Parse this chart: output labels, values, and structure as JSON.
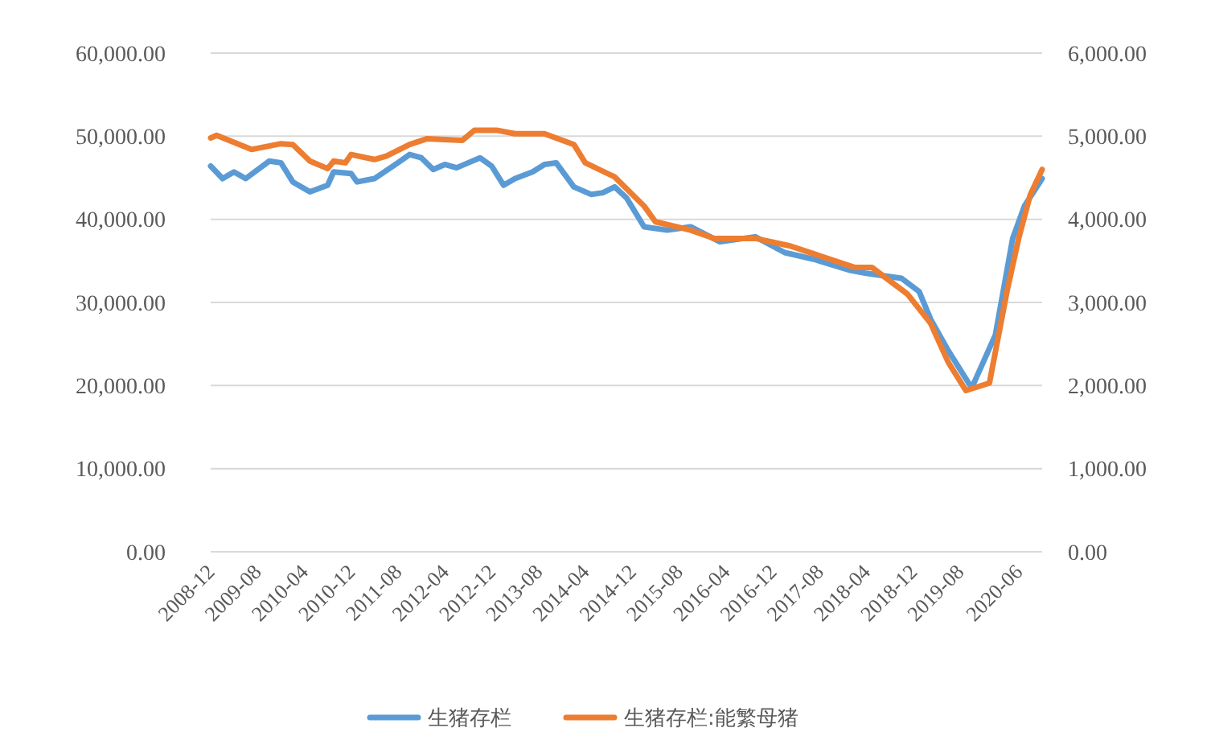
{
  "chart_data": {
    "type": "line",
    "legend": "bottom",
    "grid": "y",
    "marker": "none",
    "line_style": "solid",
    "xlim": [
      "2008-12",
      "2020-10"
    ],
    "xticks": [
      "2008-12",
      "2009-08",
      "2010-04",
      "2010-12",
      "2011-08",
      "2012-04",
      "2012-12",
      "2013-08",
      "2014-04",
      "2014-12",
      "2015-08",
      "2016-04",
      "2016-12",
      "2017-08",
      "2018-04",
      "2018-12",
      "2019-08",
      "2020-06"
    ],
    "ylim": [
      0,
      60000
    ],
    "yticks": [
      {
        "value": 0,
        "label": "0.00"
      },
      {
        "value": 10000,
        "label": "10,000.00"
      },
      {
        "value": 20000,
        "label": "20,000.00"
      },
      {
        "value": 30000,
        "label": "30,000.00"
      },
      {
        "value": 40000,
        "label": "40,000.00"
      },
      {
        "value": 50000,
        "label": "50,000.00"
      },
      {
        "value": 60000,
        "label": "60,000.00"
      }
    ],
    "y2lim": [
      0,
      6000
    ],
    "y2ticks": [
      {
        "value": 0,
        "label": "0.00"
      },
      {
        "value": 1000,
        "label": "1,000.00"
      },
      {
        "value": 2000,
        "label": "2,000.00"
      },
      {
        "value": 3000,
        "label": "3,000.00"
      },
      {
        "value": 4000,
        "label": "4,000.00"
      },
      {
        "value": 5000,
        "label": "5,000.00"
      },
      {
        "value": 6000,
        "label": "6,000.00"
      }
    ],
    "series": [
      {
        "name": "生猪存栏",
        "color": "#5b9bd5",
        "x": [
          "2008-12",
          "2009-02",
          "2009-04",
          "2009-06",
          "2009-10",
          "2009-12",
          "2010-02",
          "2010-05",
          "2010-08",
          "2010-09",
          "2010-12",
          "2011-01",
          "2011-04",
          "2011-08",
          "2011-10",
          "2011-12",
          "2012-02",
          "2012-04",
          "2012-06",
          "2012-08",
          "2012-10",
          "2012-12",
          "2013-02",
          "2013-04",
          "2013-07",
          "2013-09",
          "2013-11",
          "2014-02",
          "2014-05",
          "2014-07",
          "2014-09",
          "2014-11",
          "2015-02",
          "2015-06",
          "2015-10",
          "2016-03",
          "2016-09",
          "2017-02",
          "2017-07",
          "2018-01",
          "2018-04",
          "2018-10",
          "2019-01",
          "2019-03",
          "2019-06",
          "2019-10",
          "2020-02",
          "2020-05",
          "2020-07",
          "2020-10"
        ],
        "values": [
          46400,
          44900,
          45700,
          44900,
          47000,
          46800,
          44500,
          43300,
          44100,
          45700,
          45500,
          44500,
          44900,
          46800,
          47800,
          47400,
          46000,
          46600,
          46200,
          46800,
          47400,
          46400,
          44100,
          44900,
          45700,
          46600,
          46800,
          43900,
          43000,
          43200,
          43900,
          42600,
          39100,
          38700,
          39100,
          37300,
          37900,
          36000,
          35200,
          33900,
          33500,
          32900,
          31300,
          28000,
          24200,
          19700,
          26100,
          37700,
          41600,
          44900
        ]
      },
      {
        "name": "生猪存栏:能繁母猪",
        "color": "#ed7d31",
        "axis": "y2",
        "x": [
          "2008-12",
          "2009-01",
          "2009-07",
          "2009-12",
          "2010-02",
          "2010-05",
          "2010-08",
          "2010-09",
          "2010-11",
          "2010-12",
          "2011-04",
          "2011-06",
          "2011-10",
          "2012-01",
          "2012-07",
          "2012-09",
          "2013-01",
          "2013-04",
          "2013-09",
          "2014-02",
          "2014-04",
          "2014-09",
          "2015-02",
          "2015-04",
          "2015-10",
          "2016-02",
          "2016-09",
          "2017-03",
          "2018-02",
          "2018-05",
          "2018-11",
          "2019-03",
          "2019-06",
          "2019-09",
          "2020-01",
          "2020-04",
          "2020-06",
          "2020-08",
          "2020-10"
        ],
        "values": [
          4980,
          5010,
          4840,
          4910,
          4900,
          4700,
          4610,
          4700,
          4680,
          4780,
          4720,
          4760,
          4900,
          4970,
          4950,
          5070,
          5070,
          5030,
          5030,
          4900,
          4680,
          4510,
          4160,
          3970,
          3870,
          3770,
          3770,
          3680,
          3420,
          3420,
          3100,
          2750,
          2280,
          1940,
          2030,
          3130,
          3770,
          4300,
          4600
        ]
      }
    ]
  }
}
